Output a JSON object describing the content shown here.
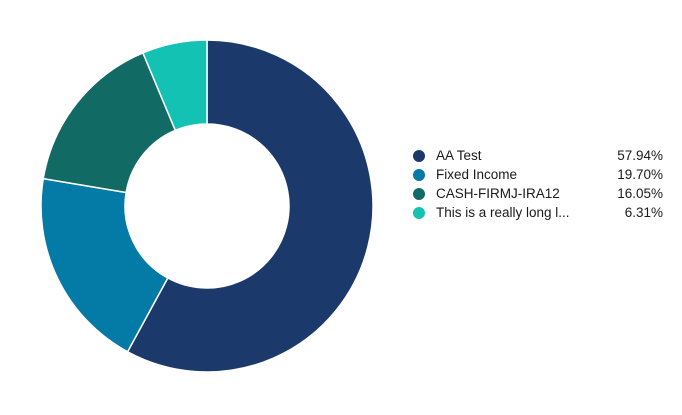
{
  "chart_data": {
    "type": "pie",
    "style": "donut",
    "title": "",
    "legend_position": "right",
    "slices": [
      {
        "label": "AA Test",
        "value": 57.94,
        "value_label": "57.94%",
        "color": "#1b3a6b"
      },
      {
        "label": "Fixed Income",
        "value": 19.7,
        "value_label": "19.70%",
        "color": "#047aa6"
      },
      {
        "label": "CASH-FIRMJ-IRA12",
        "value": 16.05,
        "value_label": "16.05%",
        "color": "#116b64"
      },
      {
        "label": "This is a really long l...",
        "value": 6.31,
        "value_label": "6.31%",
        "color": "#13c2b3"
      }
    ]
  }
}
